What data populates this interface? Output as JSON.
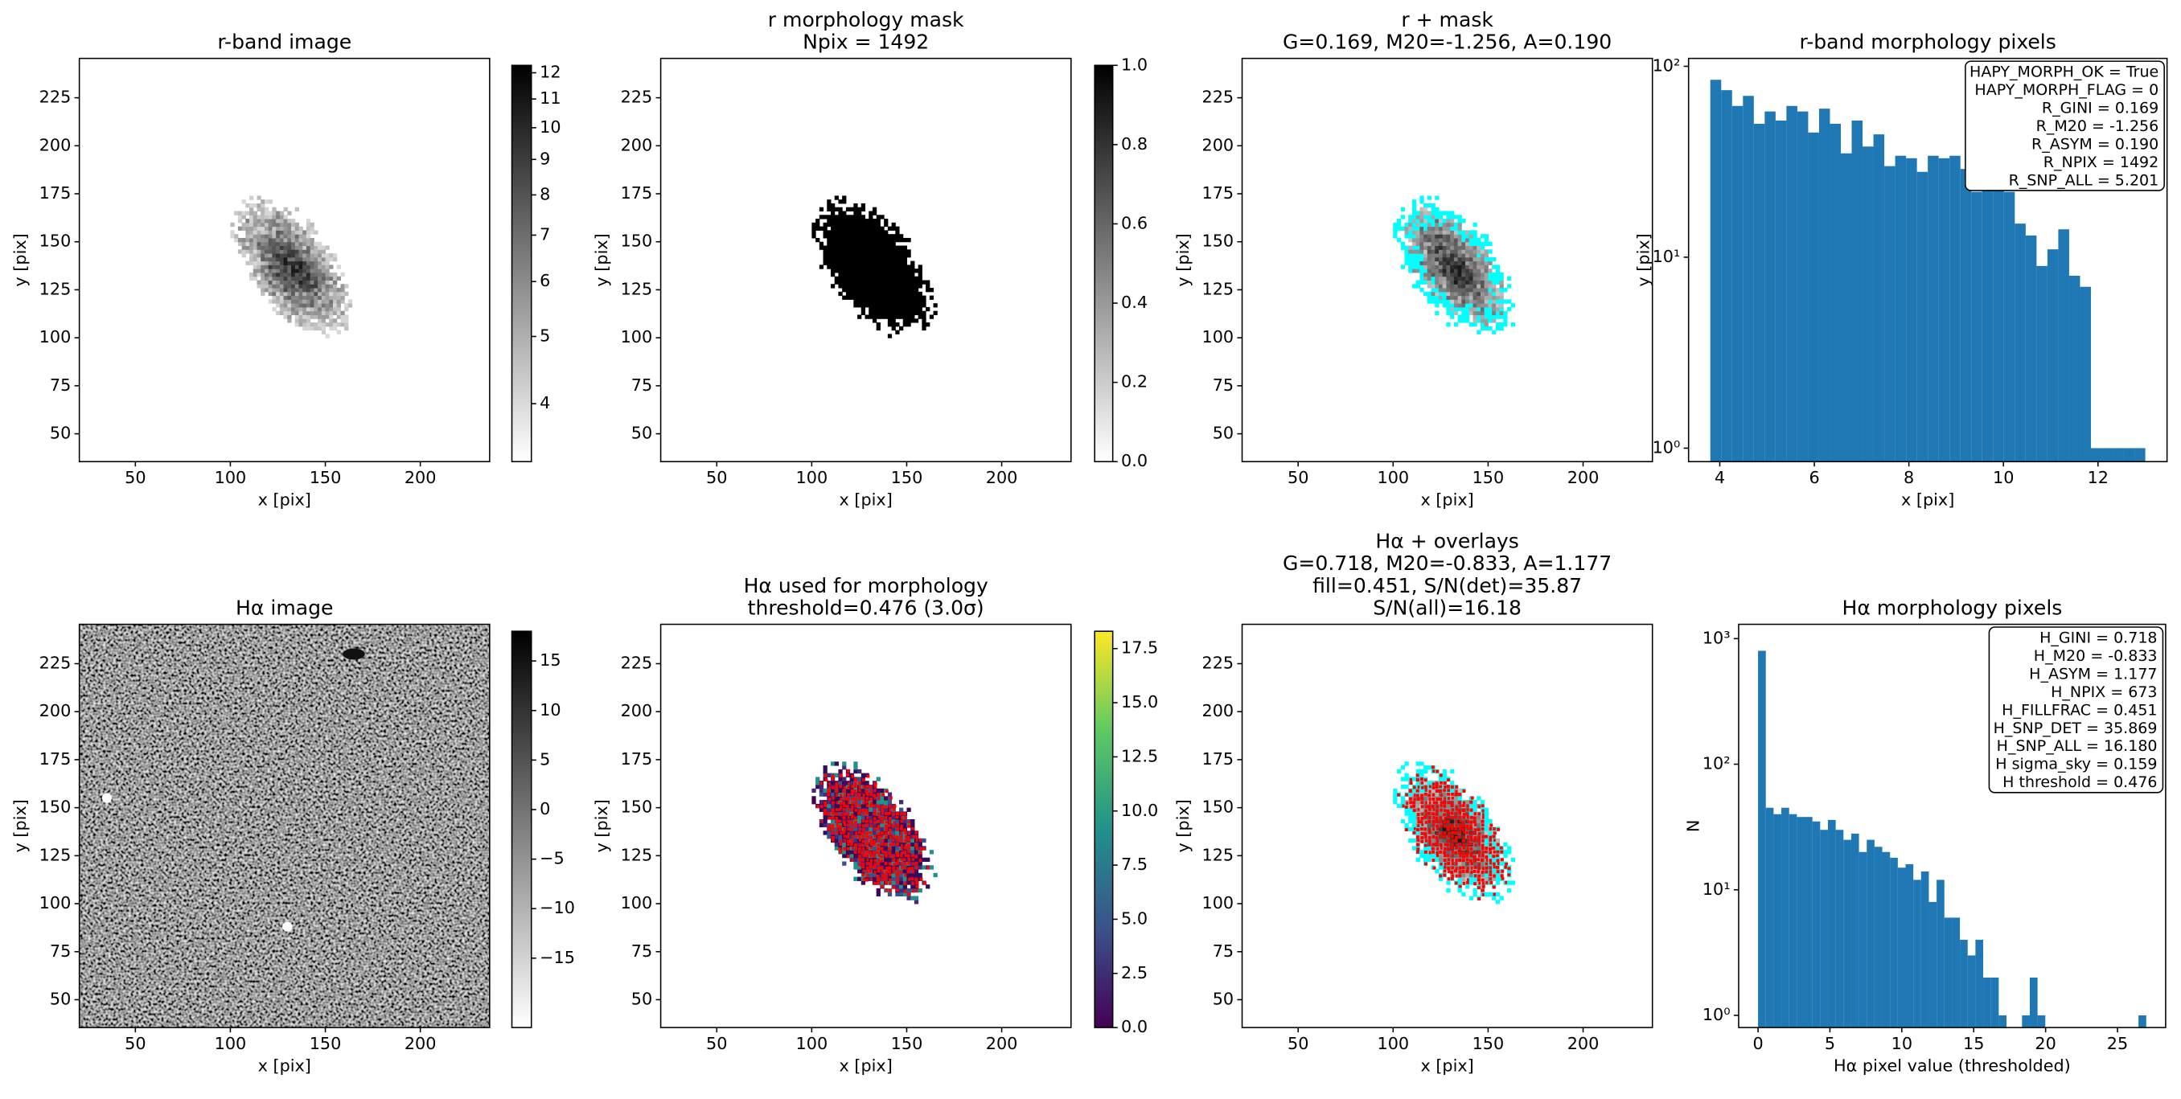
{
  "chart_data": [
    {
      "type": "image",
      "title": [
        "r-band image"
      ],
      "xlabel": "x [pix]",
      "ylabel": "y [pix]",
      "xlim": [
        20.5,
        236.5
      ],
      "ylim": [
        35.5,
        245.5
      ],
      "xticks": [
        50,
        100,
        150,
        200
      ],
      "yticks": [
        50,
        75,
        100,
        125,
        150,
        175,
        200,
        225
      ],
      "image_kind": "galaxy",
      "colormap": "gray_r",
      "colorbar": {
        "scale": "log",
        "lim": [
          3.3,
          12.3
        ],
        "ticks": [
          4,
          5,
          6,
          7,
          8,
          9,
          10,
          11,
          12
        ]
      }
    },
    {
      "type": "image",
      "title": [
        "r morphology mask",
        "Npix = 1492"
      ],
      "xlabel": "x [pix]",
      "ylabel": "y [pix]",
      "xlim": [
        20.5,
        236.5
      ],
      "ylim": [
        35.5,
        245.5
      ],
      "xticks": [
        50,
        100,
        150,
        200
      ],
      "yticks": [
        50,
        75,
        100,
        125,
        150,
        175,
        200,
        225
      ],
      "image_kind": "mask",
      "colormap": "gray_r",
      "colorbar": {
        "scale": "linear",
        "lim": [
          0,
          1
        ],
        "ticks": [
          {
            "value": 0,
            "label": "0.0"
          },
          0.2,
          0.4,
          0.6,
          0.8,
          {
            "value": 1,
            "label": "1.0"
          }
        ]
      }
    },
    {
      "type": "image",
      "title": [
        "r + mask",
        "G=0.169, M20=-1.256, A=0.190"
      ],
      "xlabel": "x [pix]",
      "ylabel": "y [pix]",
      "xlim": [
        20.5,
        236.5
      ],
      "ylim": [
        35.5,
        245.5
      ],
      "xticks": [
        50,
        100,
        150,
        200
      ],
      "yticks": [
        50,
        75,
        100,
        125,
        150,
        175,
        200,
        225
      ],
      "image_kind": "galaxy",
      "colormap": "gray_r",
      "mask_color": "#00ffff"
    },
    {
      "type": "histogram",
      "title": [
        "r-band morphology pixels"
      ],
      "xlabel": "x [pix]",
      "ylabel": "y [pix]",
      "color": "#1f77b4",
      "log_y": true,
      "xlim": [
        3.34,
        13.46
      ],
      "ylim": [
        0.85,
        110
      ],
      "xticks": [
        4,
        6,
        8,
        10,
        12
      ],
      "yticks": [
        {
          "value": 1,
          "label": "10⁰"
        },
        {
          "value": 10,
          "label": "10¹"
        },
        {
          "value": 100,
          "label": "10²"
        }
      ],
      "bins": [
        3.8,
        4.03,
        4.26,
        4.49,
        4.72,
        4.95,
        5.18,
        5.41,
        5.64,
        5.87,
        6.1,
        6.33,
        6.56,
        6.79,
        7.02,
        7.25,
        7.48,
        7.71,
        7.94,
        8.17,
        8.4,
        8.63,
        8.86,
        9.09,
        9.32,
        9.55,
        9.78,
        10.01,
        10.24,
        10.47,
        10.7,
        10.93,
        11.16,
        11.39,
        11.62,
        11.85,
        12.08,
        12.31,
        12.54,
        12.77,
        13.0
      ],
      "values": [
        85,
        75,
        62,
        70,
        50,
        58,
        52,
        62,
        58,
        45,
        60,
        50,
        35,
        52,
        38,
        44,
        30,
        34,
        33,
        28,
        34,
        33,
        34,
        29,
        22,
        28,
        27,
        22,
        15,
        13,
        9,
        11,
        14,
        8,
        7,
        1,
        1,
        1,
        1,
        1
      ],
      "annotation": [
        "HAPY_MORPH_OK = True",
        "HAPY_MORPH_FLAG = 0",
        "R_GINI = 0.169",
        "R_M20 = -1.256",
        "R_ASYM = 0.190",
        "R_NPIX = 1492",
        "R_SNP_ALL = 5.201"
      ]
    },
    {
      "type": "image",
      "title": [
        "Hα image"
      ],
      "xlabel": "x [pix]",
      "ylabel": "y [pix]",
      "xlim": [
        20.5,
        236.5
      ],
      "ylim": [
        35.5,
        245.5
      ],
      "xticks": [
        50,
        100,
        150,
        200
      ],
      "yticks": [
        50,
        75,
        100,
        125,
        150,
        175,
        200,
        225
      ],
      "image_kind": "noise",
      "colormap": "gray_r",
      "colorbar": {
        "scale": "linear",
        "lim": [
          -22,
          18
        ],
        "ticks": [
          15,
          10,
          5,
          0,
          {
            "value": -5,
            "label": "−5"
          },
          {
            "value": -10,
            "label": "−10"
          },
          {
            "value": -15,
            "label": "−15"
          }
        ]
      }
    },
    {
      "type": "image",
      "title": [
        "Hα used for morphology",
        "threshold=0.476 (3.0σ)"
      ],
      "xlabel": "x [pix]",
      "ylabel": "y [pix]",
      "xlim": [
        20.5,
        236.5
      ],
      "ylim": [
        35.5,
        245.5
      ],
      "xticks": [
        50,
        100,
        150,
        200
      ],
      "yticks": [
        50,
        75,
        100,
        125,
        150,
        175,
        200,
        225
      ],
      "image_kind": "galaxy",
      "colormap": "viridis",
      "marker_color": "#ff0000",
      "colorbar": {
        "scale": "linear",
        "lim": [
          0,
          18.3
        ],
        "ticks": [
          {
            "value": 0,
            "label": "0.0"
          },
          2.5,
          {
            "value": 5,
            "label": "5.0"
          },
          7.5,
          {
            "value": 10,
            "label": "10.0"
          },
          12.5,
          {
            "value": 15,
            "label": "15.0"
          },
          17.5
        ]
      }
    },
    {
      "type": "image",
      "title": [
        "Hα + overlays",
        "G=0.718, M20=-0.833, A=1.177",
        "fill=0.451, S/N(det)=35.87",
        "S/N(all)=16.18"
      ],
      "xlabel": "x [pix]",
      "ylabel": "y [pix]",
      "xlim": [
        20.5,
        236.5
      ],
      "ylim": [
        35.5,
        245.5
      ],
      "xticks": [
        50,
        100,
        150,
        200
      ],
      "yticks": [
        50,
        75,
        100,
        125,
        150,
        175,
        200,
        225
      ],
      "image_kind": "galaxy",
      "colormap": "gray_r",
      "mask_color": "#00ffff",
      "marker_color": "#ff0000"
    },
    {
      "type": "histogram",
      "title": [
        "Hα morphology pixels"
      ],
      "xlabel": "Hα pixel value (thresholded)",
      "ylabel": "N",
      "color": "#1f77b4",
      "log_y": true,
      "xlim": [
        -1.35,
        28.35
      ],
      "ylim": [
        0.8,
        1300
      ],
      "xticks": [
        0,
        5,
        10,
        15,
        20,
        25
      ],
      "yticks": [
        {
          "value": 1,
          "label": "10⁰"
        },
        {
          "value": 10,
          "label": "10¹"
        },
        {
          "value": 100,
          "label": "10²"
        },
        {
          "value": 1000,
          "label": "10³"
        }
      ],
      "bins": [
        0,
        0.54,
        1.08,
        1.62,
        2.16,
        2.7,
        3.24,
        3.78,
        4.32,
        4.86,
        5.4,
        5.94,
        6.48,
        7.02,
        7.56,
        8.1,
        8.64,
        9.18,
        9.72,
        10.26,
        10.8,
        11.34,
        11.88,
        12.42,
        12.96,
        13.5,
        14.04,
        14.58,
        15.12,
        15.66,
        16.2,
        16.74,
        17.28,
        17.82,
        18.36,
        18.9,
        19.44,
        19.98,
        20.52,
        21.06,
        21.6,
        22.14,
        22.68,
        23.22,
        23.76,
        24.3,
        24.84,
        25.38,
        25.92,
        26.46,
        27.0
      ],
      "values": [
        800,
        45,
        40,
        45,
        40,
        38,
        38,
        35,
        30,
        36,
        30,
        25,
        28,
        20,
        25,
        22,
        20,
        18,
        15,
        16,
        12,
        14,
        8,
        12,
        6,
        6,
        4,
        3,
        4,
        2,
        2,
        1,
        0,
        0,
        1,
        2,
        1,
        0,
        0,
        0,
        0,
        0,
        0,
        0,
        0,
        0,
        0,
        0,
        0,
        1
      ],
      "annotation": [
        "H_GINI = 0.718",
        "H_M20 = -0.833",
        "H_ASYM = 1.177",
        "H_NPIX = 673",
        "H_FILLFRAC = 0.451",
        "H_SNP_DET = 35.869",
        "H_SNP_ALL = 16.180",
        "H sigma_sky = 0.159",
        "H threshold = 0.476"
      ]
    }
  ]
}
